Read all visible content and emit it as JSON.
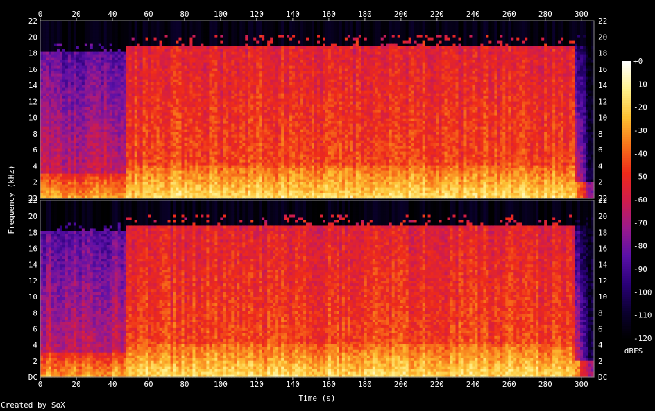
{
  "chart_data": {
    "type": "heatmap",
    "title": "",
    "xlabel": "Time (s)",
    "ylabel": "Frequency (kHz)",
    "xlim": [
      0,
      307
    ],
    "ylim_khz": [
      0,
      22
    ],
    "x_ticks": [
      0,
      20,
      40,
      60,
      80,
      100,
      120,
      140,
      160,
      180,
      200,
      220,
      240,
      260,
      280,
      300
    ],
    "y_tick_labels": [
      "DC",
      "2",
      "4",
      "6",
      "8",
      "10",
      "12",
      "14",
      "16",
      "18",
      "20",
      "22"
    ],
    "channels": 2,
    "colorbar": {
      "label": "dBFS",
      "range": [
        -120,
        0
      ],
      "tick_labels": [
        "+0",
        "-10",
        "-20",
        "-30",
        "-40",
        "-50",
        "-60",
        "-70",
        "-80",
        "-90",
        "-100",
        "-110",
        "-120"
      ]
    },
    "segments": [
      {
        "t_start": 0,
        "t_end": 47,
        "level": "low"
      },
      {
        "t_start": 47,
        "t_end": 296,
        "level": "high"
      },
      {
        "t_start": 296,
        "t_end": 307,
        "level": "fade"
      }
    ],
    "colors": {
      "background": "#000000",
      "scale": [
        "#000000",
        "#0b0030",
        "#2a0078",
        "#5a10a8",
        "#9a1a8c",
        "#cf1c4c",
        "#ee2a1a",
        "#f8741a",
        "#fdc032",
        "#fff08a",
        "#ffffff"
      ]
    }
  },
  "footer": {
    "credit": "Created by SoX"
  }
}
